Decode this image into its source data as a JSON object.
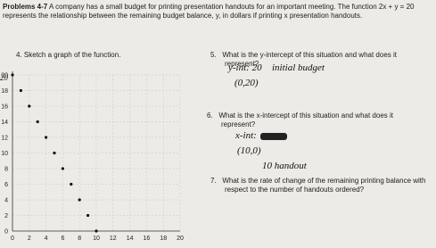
{
  "header": {
    "label": "Problems 4-7",
    "text": "A company has a small budget for printing presentation handouts for an important meeting. The function 2x + y = 20 represents the relationship between the remaining budget balance, y, in dollars if printing x presentation handouts."
  },
  "questions": [
    {
      "number": "4.",
      "text": "Sketch a graph of the function."
    },
    {
      "number": "5.",
      "text": "What is the y-intercept of this situation and what does it represent?"
    },
    {
      "number": "6.",
      "text": "What is the x-intercept of this situation and what does it represent?"
    },
    {
      "number": "7.",
      "text": "What is the rate of change of the remaining printing balance with respect to the number of handouts ordered?"
    }
  ],
  "answers": {
    "y_intercept": "y-int: 20",
    "y_meaning": "initial budget",
    "y_point": "(0,20)",
    "x_intercept": "x-int:",
    "x_point": "(10,0)",
    "x_meaning": "10 handout"
  },
  "graph": {
    "note": "20",
    "xlim": [
      0,
      20
    ],
    "ylim": [
      0,
      20
    ],
    "xticks": [
      0,
      2,
      4,
      6,
      8,
      10,
      12,
      14,
      16,
      18,
      20
    ],
    "yticks": [
      0,
      2,
      4,
      6,
      8,
      10,
      12,
      14,
      16,
      18,
      20
    ],
    "points": {
      "x": [
        0,
        1,
        2,
        3,
        4,
        5,
        6,
        7,
        8,
        9,
        10
      ],
      "y": [
        20,
        18,
        16,
        14,
        12,
        10,
        8,
        6,
        4,
        2,
        0
      ]
    }
  }
}
